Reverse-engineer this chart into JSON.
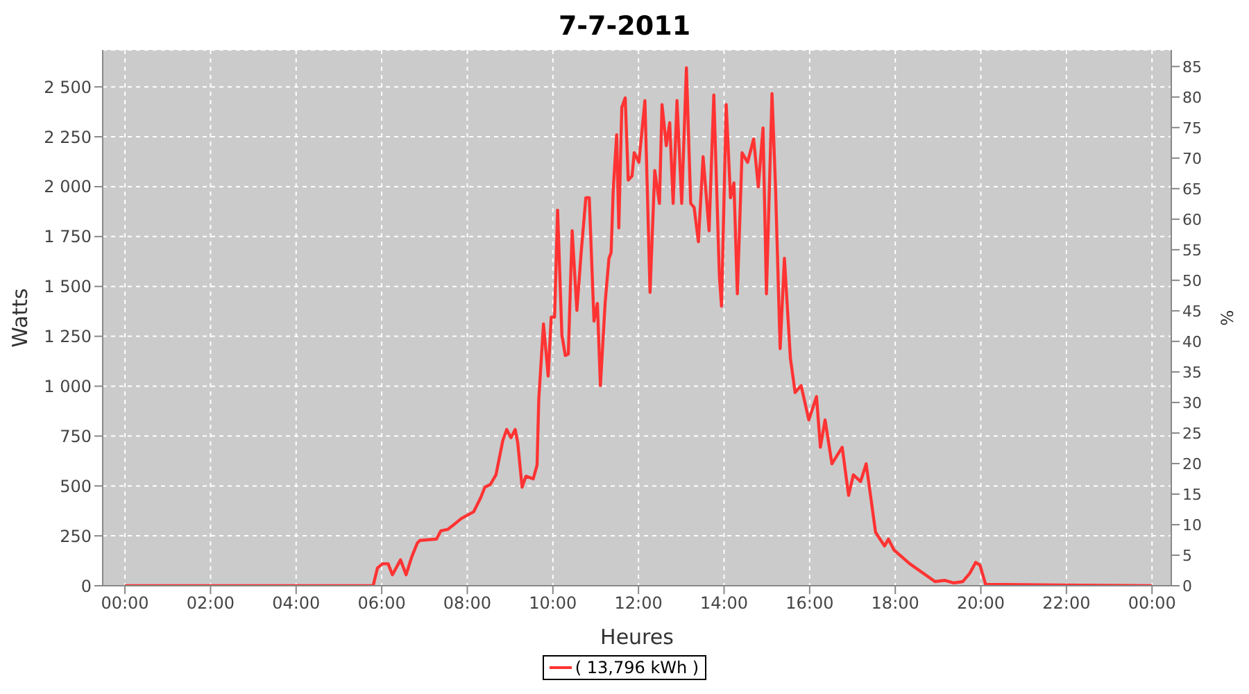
{
  "chart_data": {
    "type": "line",
    "title": "7-7-2011",
    "xlabel": "Heures",
    "ylabel": "Watts",
    "y2label": "%",
    "xlim": [
      -0.52,
      24.45
    ],
    "xticks": [
      {
        "value": 0,
        "label": "00:00"
      },
      {
        "value": 2,
        "label": "02:00"
      },
      {
        "value": 4,
        "label": "04:00"
      },
      {
        "value": 6,
        "label": "06:00"
      },
      {
        "value": 8,
        "label": "08:00"
      },
      {
        "value": 10,
        "label": "10:00"
      },
      {
        "value": 12,
        "label": "12:00"
      },
      {
        "value": 14,
        "label": "14:00"
      },
      {
        "value": 16,
        "label": "16:00"
      },
      {
        "value": 18,
        "label": "18:00"
      },
      {
        "value": 20,
        "label": "20:00"
      },
      {
        "value": 22,
        "label": "22:00"
      },
      {
        "value": 24,
        "label": "00:00"
      }
    ],
    "ylim": [
      0,
      2685
    ],
    "yticks": [
      0,
      250,
      500,
      750,
      {
        "value": 1000,
        "label": "1 000"
      },
      {
        "value": 1250,
        "label": "1 250"
      },
      {
        "value": 1500,
        "label": "1 500"
      },
      {
        "value": 1750,
        "label": "1 750"
      },
      {
        "value": 2000,
        "label": "2 000"
      },
      {
        "value": 2250,
        "label": "2 250"
      },
      {
        "value": 2500,
        "label": "2 500"
      }
    ],
    "y2lim": [
      0,
      87.7
    ],
    "y2ticks": [
      0,
      5,
      10,
      15,
      20,
      25,
      30,
      35,
      40,
      45,
      50,
      55,
      60,
      65,
      70,
      75,
      80,
      85
    ],
    "grid": true,
    "legend": "bottom",
    "line_style": "solid",
    "series": [
      {
        "name": "( 13,796 kWh )",
        "color": "#ff3333",
        "x": [
          0,
          5.8,
          5.9,
          6.02,
          6.15,
          6.25,
          6.44,
          6.57,
          6.7,
          6.83,
          6.89,
          7.28,
          7.38,
          7.54,
          7.7,
          7.86,
          8.15,
          8.31,
          8.41,
          8.54,
          8.67,
          8.83,
          8.92,
          9.02,
          9.12,
          9.18,
          9.28,
          9.37,
          9.54,
          9.63,
          9.67,
          9.78,
          9.89,
          9.96,
          10.04,
          10.11,
          10.21,
          10.29,
          10.36,
          10.45,
          10.56,
          10.66,
          10.77,
          10.85,
          10.96,
          11.04,
          11.11,
          11.22,
          11.31,
          11.36,
          11.41,
          11.49,
          11.54,
          11.61,
          11.69,
          11.76,
          11.85,
          11.9,
          12.01,
          12.15,
          12.22,
          12.27,
          12.38,
          12.49,
          12.55,
          12.65,
          12.73,
          12.81,
          12.9,
          13.01,
          13.12,
          13.22,
          13.3,
          13.4,
          13.51,
          13.65,
          13.76,
          13.89,
          13.94,
          14.05,
          14.15,
          14.23,
          14.31,
          14.42,
          14.55,
          14.69,
          14.8,
          14.91,
          14.99,
          15.12,
          15.2,
          15.31,
          15.41,
          15.55,
          15.66,
          15.8,
          15.98,
          16.16,
          16.25,
          16.36,
          16.52,
          16.76,
          16.91,
          17.02,
          17.19,
          17.32,
          17.54,
          17.75,
          17.84,
          17.97,
          18.34,
          18.93,
          19.15,
          19.36,
          19.58,
          19.74,
          19.88,
          19.98,
          20.11,
          24
        ],
        "values": [
          0,
          0,
          89,
          110,
          110,
          55,
          130,
          55,
          144,
          213,
          227,
          234,
          275,
          282,
          309,
          337,
          371,
          440,
          494,
          508,
          556,
          728,
          783,
          742,
          783,
          714,
          494,
          549,
          536,
          604,
          934,
          1312,
          1051,
          1346,
          1346,
          1882,
          1257,
          1154,
          1161,
          1779,
          1380,
          1669,
          1944,
          1944,
          1326,
          1415,
          1003,
          1415,
          1641,
          1669,
          1985,
          2260,
          1793,
          2397,
          2445,
          2033,
          2054,
          2170,
          2122,
          2431,
          1875,
          1470,
          2081,
          1916,
          2411,
          2205,
          2321,
          1916,
          2431,
          1916,
          2596,
          1916,
          1896,
          1724,
          2150,
          1779,
          2459,
          1552,
          1401,
          2411,
          1944,
          2019,
          1463,
          2170,
          2122,
          2239,
          1999,
          2294,
          1463,
          2466,
          2012,
          1188,
          1641,
          1140,
          968,
          1003,
          831,
          948,
          694,
          831,
          611,
          694,
          453,
          556,
          522,
          611,
          268,
          199,
          234,
          179,
          110,
          21,
          27,
          14,
          21,
          62,
          117,
          103,
          7,
          0
        ]
      }
    ]
  }
}
